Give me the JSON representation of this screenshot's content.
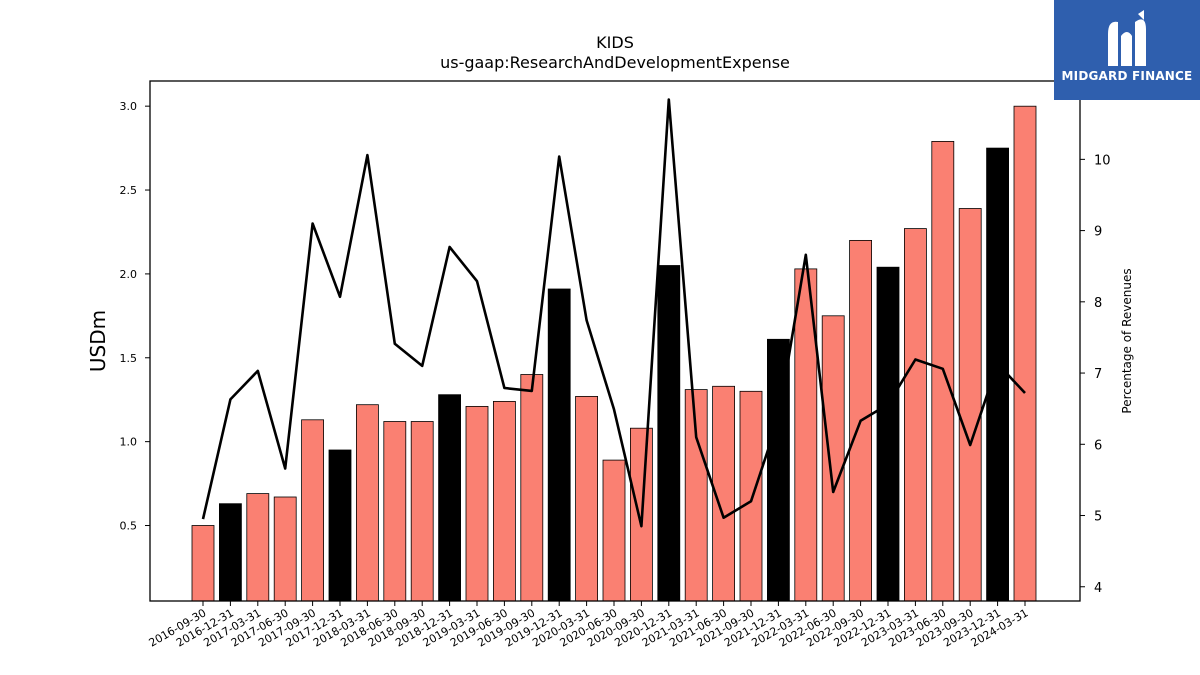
{
  "brand": {
    "name": "MIDGARD FINANCE",
    "logo_icon": "midgard-m-logo-icon",
    "background": "#2f5fae"
  },
  "chart_data": {
    "type": "bar",
    "title": "KIDS",
    "subtitle": "us-gaap:ResearchAndDevelopmentExpense",
    "ylabel": "USDm",
    "y2label": "Percentage of Revenues",
    "ylim": [
      0.05,
      3.15
    ],
    "y2lim": [
      3.8,
      11.1
    ],
    "yticks": [
      "0.5",
      "1.0",
      "1.5",
      "2.0",
      "2.5",
      "3.0"
    ],
    "y2ticks": [
      "4",
      "5",
      "6",
      "7",
      "8",
      "9",
      "10"
    ],
    "categories": [
      "2016-09-30",
      "2016-12-31",
      "2017-03-31",
      "2017-06-30",
      "2017-09-30",
      "2017-12-31",
      "2018-03-31",
      "2018-06-30",
      "2018-09-30",
      "2018-12-31",
      "2019-03-31",
      "2019-06-30",
      "2019-09-30",
      "2019-12-31",
      "2020-03-31",
      "2020-06-30",
      "2020-09-30",
      "2020-12-31",
      "2021-03-31",
      "2021-06-30",
      "2021-09-30",
      "2021-12-31",
      "2022-03-31",
      "2022-06-30",
      "2022-09-30",
      "2022-12-31",
      "2023-03-31",
      "2023-06-30",
      "2023-09-30",
      "2023-12-31",
      "2024-03-31"
    ],
    "series": [
      {
        "type": "bar",
        "axis": "left",
        "values": [
          0.5,
          0.63,
          0.69,
          0.67,
          1.13,
          0.95,
          1.22,
          1.12,
          1.12,
          1.28,
          1.21,
          1.24,
          1.4,
          1.91,
          1.27,
          0.89,
          1.08,
          2.05,
          1.31,
          1.33,
          1.3,
          1.61,
          2.03,
          1.75,
          2.2,
          2.04,
          2.27,
          2.79,
          2.39,
          2.75,
          3.0
        ],
        "highlight": [
          false,
          true,
          false,
          false,
          false,
          true,
          false,
          false,
          false,
          true,
          false,
          false,
          false,
          true,
          false,
          false,
          false,
          true,
          false,
          false,
          false,
          true,
          false,
          false,
          false,
          true,
          false,
          false,
          false,
          true,
          false
        ]
      },
      {
        "type": "line",
        "axis": "right",
        "values": [
          4.95,
          6.63,
          7.03,
          5.66,
          9.1,
          8.07,
          10.06,
          7.41,
          7.1,
          8.77,
          8.29,
          6.79,
          6.75,
          10.04,
          7.74,
          6.49,
          4.85,
          10.84,
          6.1,
          4.97,
          5.2,
          6.36,
          8.66,
          5.33,
          6.33,
          6.56,
          7.19,
          7.06,
          5.99,
          7.13,
          6.72
        ]
      }
    ],
    "colors": {
      "bar": "#fa8072",
      "bar_highlight": "#000000",
      "line": "#000000"
    },
    "grid": false,
    "legend": "none"
  }
}
